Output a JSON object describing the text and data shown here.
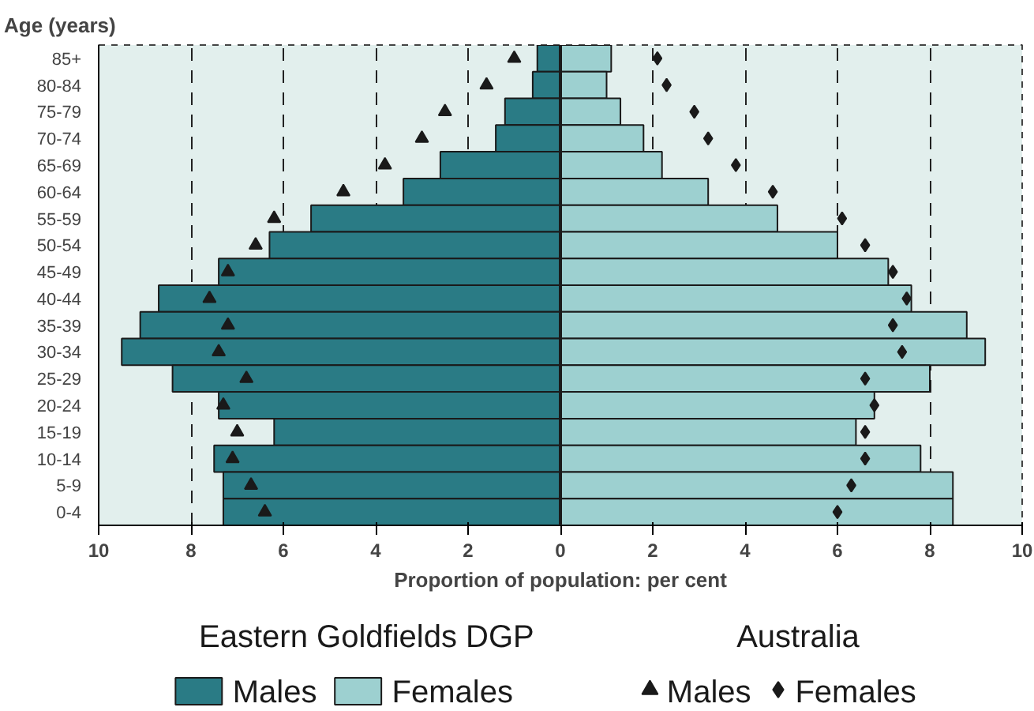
{
  "chart_data": {
    "type": "bar",
    "orientation": "horizontal",
    "ylabel": "Age (years)",
    "xlabel": "Proportion of population: per cent",
    "categories": [
      "85+",
      "80-84",
      "75-79",
      "70-74",
      "65-69",
      "60-64",
      "55-59",
      "50-54",
      "45-49",
      "40-44",
      "35-39",
      "30-34",
      "25-29",
      "20-24",
      "15-19",
      "10-14",
      "5-9",
      "0-4"
    ],
    "legend_title": [
      "Eastern Goldfields DGP",
      "Australia"
    ],
    "series": [
      {
        "name": "Males",
        "color": "#2a7b85",
        "values": [
          -0.5,
          -0.6,
          -1.2,
          -1.4,
          -2.6,
          -3.4,
          -5.4,
          -6.3,
          -7.4,
          -8.7,
          -9.1,
          -9.5,
          -8.4,
          -7.4,
          -6.2,
          -7.5,
          -7.3,
          -7.3
        ]
      },
      {
        "name": "Females",
        "color": "#9dd0d0",
        "values": [
          1.1,
          1.0,
          1.3,
          1.8,
          2.2,
          3.2,
          4.7,
          6.0,
          7.1,
          7.6,
          8.8,
          9.2,
          8.0,
          6.8,
          6.4,
          7.8,
          8.5,
          8.5
        ]
      },
      {
        "name": "Males",
        "type": "scatter",
        "marker": "triangle",
        "color": "#1a1a1a",
        "values": [
          -1.0,
          -1.6,
          -2.5,
          -3.0,
          -3.8,
          -4.7,
          -6.2,
          -6.6,
          -7.2,
          -7.6,
          -7.2,
          -7.4,
          -6.8,
          -7.3,
          -7.0,
          -7.1,
          -6.7,
          -6.4
        ]
      },
      {
        "name": "Females",
        "type": "scatter",
        "marker": "diamond",
        "color": "#1a1a1a",
        "values": [
          2.1,
          2.3,
          2.9,
          3.2,
          3.8,
          4.6,
          6.1,
          6.6,
          7.2,
          7.5,
          7.2,
          7.4,
          6.6,
          6.8,
          6.6,
          6.6,
          6.3,
          6.0
        ]
      }
    ],
    "xlim": [
      -10,
      10
    ],
    "xticks": [
      {
        "value": -10,
        "label": "10"
      },
      {
        "value": -8,
        "label": "8"
      },
      {
        "value": -6,
        "label": "6"
      },
      {
        "value": -4,
        "label": "4"
      },
      {
        "value": -2,
        "label": "2"
      },
      0,
      2,
      4,
      6,
      8,
      10
    ],
    "grid": "x",
    "legend": "bottom",
    "stacked": true
  }
}
